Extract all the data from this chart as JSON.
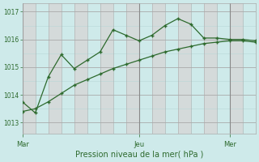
{
  "xlabel": "Pression niveau de la mer( hPa )",
  "bg_color": "#ceeaea",
  "plot_bg_color": "#ceeaea",
  "grid_minor_color": "#b8d8d8",
  "grid_major_color": "#aaaaaa",
  "col_band_color": "#ddc8c8",
  "line_color": "#2d6a2d",
  "marker_color": "#2d6a2d",
  "tick_label_color": "#2d6a2d",
  "xlabel_color": "#2d6a2d",
  "ylim": [
    1012.6,
    1017.3
  ],
  "yticks": [
    1013,
    1014,
    1015,
    1016,
    1017
  ],
  "n_cols": 18,
  "day_positions": [
    0,
    9,
    16
  ],
  "day_labels": [
    "Mar",
    "Jeu",
    "Mer"
  ],
  "series1_x": [
    0,
    1,
    2,
    3,
    4,
    5,
    6,
    7,
    8,
    9,
    10,
    11,
    12,
    13,
    14,
    15,
    16,
    17,
    18
  ],
  "series1_y": [
    1013.75,
    1013.35,
    1014.65,
    1015.45,
    1014.95,
    1015.25,
    1015.55,
    1016.35,
    1016.15,
    1015.95,
    1016.15,
    1016.5,
    1016.75,
    1016.55,
    1016.05,
    1016.05,
    1016.0,
    1016.0,
    1015.95
  ],
  "series2_x": [
    0,
    1,
    2,
    3,
    4,
    5,
    6,
    7,
    8,
    9,
    10,
    11,
    12,
    13,
    14,
    15,
    16,
    17,
    18
  ],
  "series2_y": [
    1013.4,
    1013.5,
    1013.75,
    1014.05,
    1014.35,
    1014.55,
    1014.75,
    1014.95,
    1015.1,
    1015.25,
    1015.4,
    1015.55,
    1015.65,
    1015.75,
    1015.85,
    1015.9,
    1015.95,
    1015.95,
    1015.9
  ]
}
